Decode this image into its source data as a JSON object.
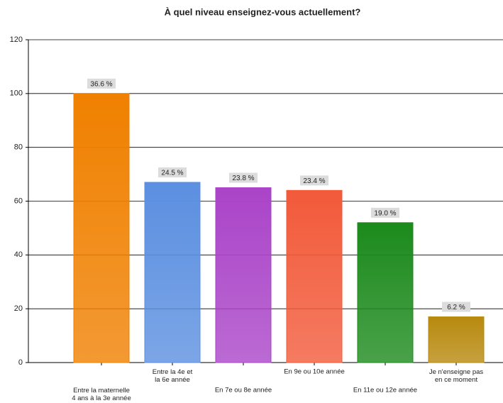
{
  "chart_data": {
    "type": "bar",
    "title": "À quel niveau enseignez-vous actuellement?",
    "categories": [
      "Entre la maternelle\n4 ans à la 3e année",
      "Entre la 4e et\nla 6e année",
      "En 7e ou 8e année",
      "En 9e ou 10e année",
      "En 11e ou 12e année",
      "Je n'enseigne pas\nen ce moment"
    ],
    "values": [
      100,
      67,
      65,
      64,
      52,
      17
    ],
    "data_labels": [
      "36.6 %",
      "24.5 %",
      "23.8 %",
      "23.4 %",
      "19.0 %",
      "6.2 %"
    ],
    "colors": [
      "#f08000",
      "#5b8fe0",
      "#aa44c8",
      "#f25a3a",
      "#1c8a1c",
      "#b8890e"
    ],
    "ylim": [
      0,
      120
    ],
    "yticks": [
      0,
      20,
      40,
      60,
      80,
      100,
      120
    ],
    "grid": true
  }
}
